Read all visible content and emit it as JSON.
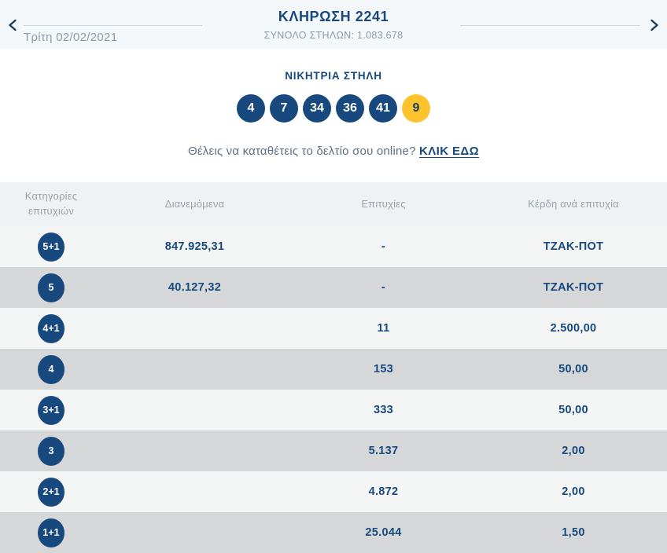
{
  "header": {
    "title": "ΚΛΗΡΩΣΗ 2241",
    "subtitle": "ΣΥΝΟΛΟ ΣΤΗΛΩΝ: 1.083.678",
    "date": "Τρίτη 02/02/2021"
  },
  "winning_column": {
    "title": "ΝΙΚΗΤΡΙΑ ΣΤΗΛΗ",
    "numbers": [
      "4",
      "7",
      "34",
      "36",
      "41"
    ],
    "joker": "9"
  },
  "cta": {
    "question": "Θέλεις να καταθέτεις το δελτίο σου online? ",
    "link_label": "ΚΛΙΚ ΕΔΩ"
  },
  "table": {
    "headers": {
      "category": "Κατηγορίες επιτυχιών",
      "distributed": "Διανεμόμενα",
      "winners": "Επιτυχίες",
      "prize": "Κέρδη ανά επιτυχία"
    },
    "rows": [
      {
        "category": "5+1",
        "distributed": "847.925,31",
        "winners": "-",
        "prize": "ΤΖΑΚ-ΠΟΤ"
      },
      {
        "category": "5",
        "distributed": "40.127,32",
        "winners": "-",
        "prize": "ΤΖΑΚ-ΠΟΤ"
      },
      {
        "category": "4+1",
        "distributed": "",
        "winners": "11",
        "prize": "2.500,00"
      },
      {
        "category": "4",
        "distributed": "",
        "winners": "153",
        "prize": "50,00"
      },
      {
        "category": "3+1",
        "distributed": "",
        "winners": "333",
        "prize": "50,00"
      },
      {
        "category": "3",
        "distributed": "",
        "winners": "5.137",
        "prize": "2,00"
      },
      {
        "category": "2+1",
        "distributed": "",
        "winners": "4.872",
        "prize": "2,00"
      },
      {
        "category": "1+1",
        "distributed": "",
        "winners": "25.044",
        "prize": "1,50"
      }
    ]
  },
  "colors": {
    "navy": "#17497f",
    "joker_yellow": "#fcc32d",
    "header_bg": "#f5f8fa",
    "table_header_bg": "#f0f1f2",
    "row_light": "#f4f5f5",
    "row_dark": "#d5d7d8",
    "muted_text": "#8e9aa9"
  }
}
